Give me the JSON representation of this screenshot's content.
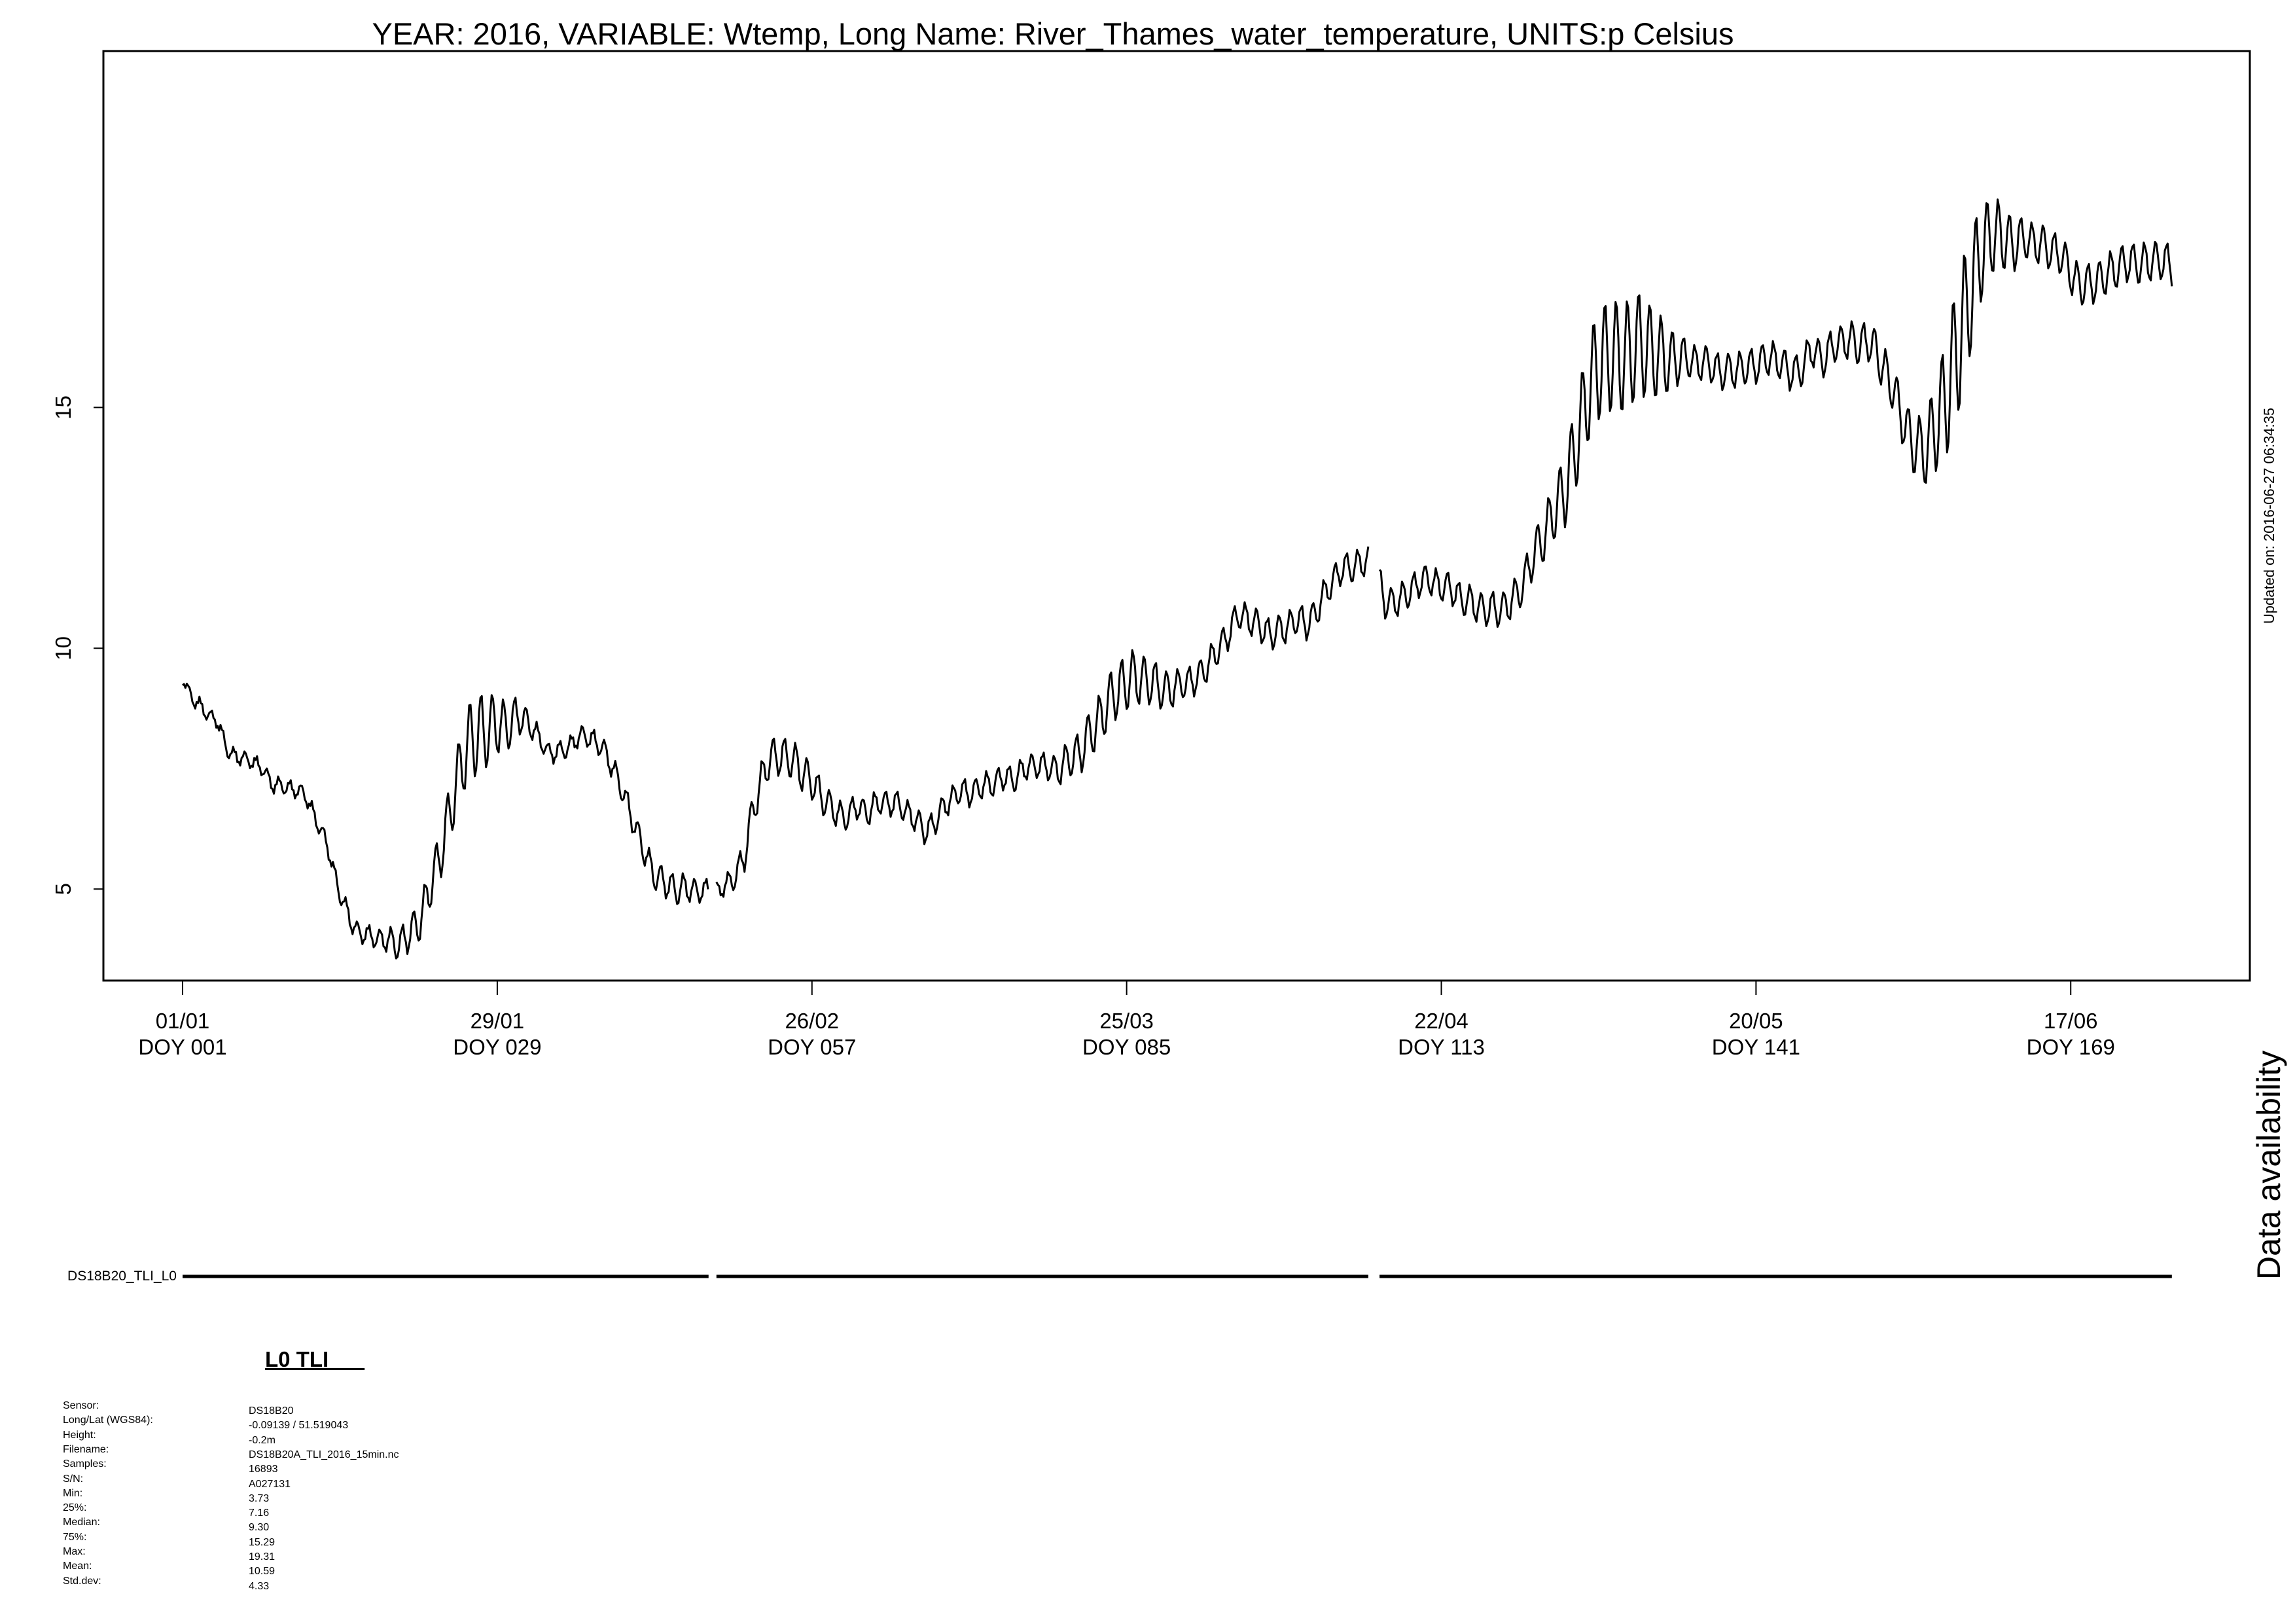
{
  "chart_data": {
    "type": "line",
    "title": "YEAR: 2016, VARIABLE: Wtemp, Long Name: River_Thames_water_temperature, UNITS:p Celsius",
    "xlabel": "",
    "ylabel": "",
    "xlim": [
      1,
      179
    ],
    "ylim": [
      3.1,
      22.4
    ],
    "yticks": [
      5,
      10,
      15
    ],
    "xticks": [
      {
        "doy": 1,
        "date": "01/01",
        "label": "DOY 001"
      },
      {
        "doy": 29,
        "date": "29/01",
        "label": "DOY 029"
      },
      {
        "doy": 57,
        "date": "26/02",
        "label": "DOY 057"
      },
      {
        "doy": 85,
        "date": "25/03",
        "label": "DOY 085"
      },
      {
        "doy": 113,
        "date": "22/04",
        "label": "DOY 113"
      },
      {
        "doy": 141,
        "date": "20/05",
        "label": "DOY 141"
      },
      {
        "doy": 169,
        "date": "17/06",
        "label": "DOY 169"
      }
    ],
    "grid": false,
    "diurnal_amplitude": [
      {
        "doy": 1,
        "amp": 0.12
      },
      {
        "doy": 10,
        "amp": 0.15
      },
      {
        "doy": 18,
        "amp": 0.18
      },
      {
        "doy": 24,
        "amp": 0.5
      },
      {
        "doy": 27,
        "amp": 0.9
      },
      {
        "doy": 29,
        "amp": 0.6
      },
      {
        "doy": 33,
        "amp": 0.15
      },
      {
        "doy": 40,
        "amp": 0.25
      },
      {
        "doy": 45,
        "amp": 0.3
      },
      {
        "doy": 49,
        "amp": 0.15
      },
      {
        "doy": 52,
        "amp": 0.4
      },
      {
        "doy": 56,
        "amp": 0.4
      },
      {
        "doy": 60,
        "amp": 0.25
      },
      {
        "doy": 70,
        "amp": 0.25
      },
      {
        "doy": 78,
        "amp": 0.25
      },
      {
        "doy": 82,
        "amp": 0.5
      },
      {
        "doy": 85,
        "amp": 0.6
      },
      {
        "doy": 90,
        "amp": 0.3
      },
      {
        "doy": 100,
        "amp": 0.3
      },
      {
        "doy": 107,
        "amp": 0.3
      },
      {
        "doy": 113,
        "amp": 0.3
      },
      {
        "doy": 120,
        "amp": 0.35
      },
      {
        "doy": 123,
        "amp": 0.6
      },
      {
        "doy": 127,
        "amp": 1.2
      },
      {
        "doy": 131,
        "amp": 1.1
      },
      {
        "doy": 135,
        "amp": 0.35
      },
      {
        "doy": 148,
        "amp": 0.35
      },
      {
        "doy": 154,
        "amp": 0.5
      },
      {
        "doy": 156,
        "amp": 0.7
      },
      {
        "doy": 159,
        "amp": 1.5
      },
      {
        "doy": 162,
        "amp": 0.8
      },
      {
        "doy": 165,
        "amp": 0.4
      },
      {
        "doy": 178,
        "amp": 0.4
      }
    ],
    "series": [
      {
        "segments": [
          [
            {
              "doy": 1.0,
              "value": 9.4
            },
            {
              "doy": 2,
              "value": 8.9
            },
            {
              "doy": 4,
              "value": 8.5
            },
            {
              "doy": 5,
              "value": 7.9
            },
            {
              "doy": 6,
              "value": 7.7
            },
            {
              "doy": 7,
              "value": 7.7
            },
            {
              "doy": 8,
              "value": 7.5
            },
            {
              "doy": 9,
              "value": 7.2
            },
            {
              "doy": 10,
              "value": 7.1
            },
            {
              "doy": 11,
              "value": 7.1
            },
            {
              "doy": 12,
              "value": 6.9
            },
            {
              "doy": 13,
              "value": 6.4
            },
            {
              "doy": 14,
              "value": 5.8
            },
            {
              "doy": 15,
              "value": 4.9
            },
            {
              "doy": 16,
              "value": 4.3
            },
            {
              "doy": 17,
              "value": 4.05
            },
            {
              "doy": 18,
              "value": 4.0
            },
            {
              "doy": 19,
              "value": 3.95
            },
            {
              "doy": 20,
              "value": 3.85
            },
            {
              "doy": 21,
              "value": 4.0
            },
            {
              "doy": 22,
              "value": 4.3
            },
            {
              "doy": 23,
              "value": 5.0
            },
            {
              "doy": 24,
              "value": 5.8
            },
            {
              "doy": 25,
              "value": 6.8
            },
            {
              "doy": 26,
              "value": 7.8
            },
            {
              "doy": 27,
              "value": 8.2
            },
            {
              "doy": 28,
              "value": 8.3
            },
            {
              "doy": 29,
              "value": 8.4
            },
            {
              "doy": 30,
              "value": 8.4
            },
            {
              "doy": 31,
              "value": 8.6
            },
            {
              "doy": 32,
              "value": 8.4
            },
            {
              "doy": 33,
              "value": 8.0
            },
            {
              "doy": 34,
              "value": 7.8
            },
            {
              "doy": 35,
              "value": 7.9
            },
            {
              "doy": 36,
              "value": 8.1
            },
            {
              "doy": 37,
              "value": 8.2
            },
            {
              "doy": 38,
              "value": 8.0
            },
            {
              "doy": 39,
              "value": 7.7
            },
            {
              "doy": 40,
              "value": 7.1
            },
            {
              "doy": 41,
              "value": 6.5
            },
            {
              "doy": 42,
              "value": 5.8
            },
            {
              "doy": 43,
              "value": 5.3
            },
            {
              "doy": 44,
              "value": 5.1
            },
            {
              "doy": 45,
              "value": 5.0
            },
            {
              "doy": 46,
              "value": 5.0
            },
            {
              "doy": 47.8,
              "value": 4.95
            }
          ],
          [
            {
              "doy": 48.5,
              "value": 5.0
            },
            {
              "doy": 49,
              "value": 5.0
            },
            {
              "doy": 50,
              "value": 5.2
            },
            {
              "doy": 51,
              "value": 5.7
            },
            {
              "doy": 52,
              "value": 6.9
            },
            {
              "doy": 53,
              "value": 7.6
            },
            {
              "doy": 54,
              "value": 7.8
            },
            {
              "doy": 55,
              "value": 7.7
            },
            {
              "doy": 56,
              "value": 7.5
            },
            {
              "doy": 57,
              "value": 7.2
            },
            {
              "doy": 58,
              "value": 6.9
            },
            {
              "doy": 59,
              "value": 6.6
            },
            {
              "doy": 60,
              "value": 6.5
            },
            {
              "doy": 61,
              "value": 6.7
            },
            {
              "doy": 62,
              "value": 6.6
            },
            {
              "doy": 63,
              "value": 6.8
            },
            {
              "doy": 64,
              "value": 6.8
            },
            {
              "doy": 65,
              "value": 6.7
            },
            {
              "doy": 66,
              "value": 6.5
            },
            {
              "doy": 67,
              "value": 6.2
            },
            {
              "doy": 68,
              "value": 6.4
            },
            {
              "doy": 69,
              "value": 6.8
            },
            {
              "doy": 70,
              "value": 7.0
            },
            {
              "doy": 71,
              "value": 7.0
            },
            {
              "doy": 72,
              "value": 7.1
            },
            {
              "doy": 73,
              "value": 7.2
            },
            {
              "doy": 74,
              "value": 7.3
            },
            {
              "doy": 75,
              "value": 7.3
            },
            {
              "doy": 76,
              "value": 7.5
            },
            {
              "doy": 77,
              "value": 7.6
            },
            {
              "doy": 78,
              "value": 7.5
            },
            {
              "doy": 79,
              "value": 7.5
            },
            {
              "doy": 80,
              "value": 7.7
            },
            {
              "doy": 81,
              "value": 7.9
            },
            {
              "doy": 82,
              "value": 8.3
            },
            {
              "doy": 83,
              "value": 8.7
            },
            {
              "doy": 84,
              "value": 9.1
            },
            {
              "doy": 85,
              "value": 9.3
            },
            {
              "doy": 86,
              "value": 9.4
            },
            {
              "doy": 87,
              "value": 9.3
            },
            {
              "doy": 88,
              "value": 9.2
            },
            {
              "doy": 89,
              "value": 9.1
            },
            {
              "doy": 90,
              "value": 9.3
            },
            {
              "doy": 91,
              "value": 9.3
            },
            {
              "doy": 92,
              "value": 9.6
            },
            {
              "doy": 93,
              "value": 9.9
            },
            {
              "doy": 94,
              "value": 10.3
            },
            {
              "doy": 95,
              "value": 10.7
            },
            {
              "doy": 96,
              "value": 10.6
            },
            {
              "doy": 97,
              "value": 10.4
            },
            {
              "doy": 98,
              "value": 10.3
            },
            {
              "doy": 99,
              "value": 10.4
            },
            {
              "doy": 100,
              "value": 10.6
            },
            {
              "doy": 101,
              "value": 10.5
            },
            {
              "doy": 102,
              "value": 10.8
            },
            {
              "doy": 103,
              "value": 11.3
            },
            {
              "doy": 104,
              "value": 11.6
            },
            {
              "doy": 105,
              "value": 11.7
            },
            {
              "doy": 106.5,
              "value": 11.8
            }
          ],
          [
            {
              "doy": 107.5,
              "value": 11.4
            },
            {
              "doy": 108,
              "value": 10.9
            },
            {
              "doy": 109,
              "value": 11.0
            },
            {
              "doy": 110,
              "value": 11.1
            },
            {
              "doy": 111,
              "value": 11.4
            },
            {
              "doy": 112,
              "value": 11.4
            },
            {
              "doy": 113,
              "value": 11.3
            },
            {
              "doy": 114,
              "value": 11.2
            },
            {
              "doy": 115,
              "value": 11.0
            },
            {
              "doy": 116,
              "value": 10.9
            },
            {
              "doy": 117,
              "value": 10.8
            },
            {
              "doy": 118,
              "value": 10.8
            },
            {
              "doy": 119,
              "value": 10.9
            },
            {
              "doy": 120,
              "value": 11.2
            },
            {
              "doy": 121,
              "value": 11.8
            },
            {
              "doy": 122,
              "value": 12.3
            },
            {
              "doy": 123,
              "value": 12.8
            },
            {
              "doy": 124,
              "value": 13.3
            },
            {
              "doy": 125,
              "value": 14.2
            },
            {
              "doy": 126,
              "value": 15.3
            },
            {
              "doy": 127,
              "value": 15.9
            },
            {
              "doy": 128,
              "value": 16.1
            },
            {
              "doy": 129,
              "value": 16.0
            },
            {
              "doy": 130,
              "value": 16.2
            },
            {
              "doy": 131,
              "value": 16.3
            },
            {
              "doy": 132,
              "value": 16.1
            },
            {
              "doy": 133,
              "value": 16.0
            },
            {
              "doy": 134,
              "value": 16.0
            },
            {
              "doy": 135,
              "value": 16.0
            },
            {
              "doy": 136,
              "value": 15.9
            },
            {
              "doy": 137,
              "value": 15.9
            },
            {
              "doy": 138,
              "value": 15.7
            },
            {
              "doy": 139,
              "value": 15.8
            },
            {
              "doy": 140,
              "value": 15.8
            },
            {
              "doy": 141,
              "value": 15.9
            },
            {
              "doy": 142,
              "value": 16.0
            },
            {
              "doy": 143,
              "value": 16.0
            },
            {
              "doy": 144,
              "value": 15.7
            },
            {
              "doy": 145,
              "value": 15.8
            },
            {
              "doy": 146,
              "value": 16.2
            },
            {
              "doy": 147,
              "value": 16.0
            },
            {
              "doy": 148,
              "value": 16.3
            },
            {
              "doy": 149,
              "value": 16.4
            },
            {
              "doy": 150,
              "value": 16.3
            },
            {
              "doy": 151,
              "value": 16.4
            },
            {
              "doy": 152,
              "value": 16.0
            },
            {
              "doy": 153,
              "value": 15.5
            },
            {
              "doy": 154,
              "value": 14.8
            },
            {
              "doy": 155,
              "value": 14.2
            },
            {
              "doy": 156,
              "value": 14.1
            },
            {
              "doy": 157,
              "value": 14.6
            },
            {
              "doy": 158,
              "value": 15.3
            },
            {
              "doy": 159,
              "value": 16.3
            },
            {
              "doy": 160,
              "value": 17.3
            },
            {
              "doy": 161,
              "value": 18.2
            },
            {
              "doy": 162,
              "value": 18.6
            },
            {
              "doy": 163,
              "value": 18.5
            },
            {
              "doy": 164,
              "value": 18.4
            },
            {
              "doy": 165,
              "value": 18.5
            },
            {
              "doy": 166,
              "value": 18.4
            },
            {
              "doy": 167,
              "value": 18.3
            },
            {
              "doy": 168,
              "value": 18.2
            },
            {
              "doy": 169,
              "value": 17.8
            },
            {
              "doy": 170,
              "value": 17.5
            },
            {
              "doy": 171,
              "value": 17.6
            },
            {
              "doy": 172,
              "value": 17.7
            },
            {
              "doy": 173,
              "value": 17.9
            },
            {
              "doy": 174,
              "value": 18.0
            },
            {
              "doy": 175,
              "value": 18.0
            },
            {
              "doy": 176,
              "value": 18.0
            },
            {
              "doy": 177,
              "value": 18.1
            },
            {
              "doy": 178,
              "value": 17.9
            }
          ]
        ]
      }
    ],
    "availability": {
      "title": "Data availability",
      "label": "DS18B20_TLI_L0",
      "segments": [
        [
          1,
          47.8
        ],
        [
          48.5,
          106.5
        ],
        [
          107.5,
          178
        ]
      ]
    },
    "updated": "Updated on: 2016-06-27 06:34:35"
  },
  "info": {
    "heading": "L0 TLI      ",
    "rows": [
      {
        "key": "Sensor:",
        "value": "DS18B20"
      },
      {
        "key": "Long/Lat (WGS84):",
        "value": "-0.09139 / 51.519043"
      },
      {
        "key": "Height:",
        "value": "-0.2m"
      },
      {
        "key": "Filename:",
        "value": "DS18B20A_TLI_2016_15min.nc"
      },
      {
        "key": "Samples:",
        "value": "16893"
      },
      {
        "key": "S/N:",
        "value": "A027131"
      },
      {
        "key": "Min:",
        "value": "3.73"
      },
      {
        "key": "25%:",
        "value": "7.16"
      },
      {
        "key": "Median:",
        "value": "9.30"
      },
      {
        "key": "75%:",
        "value": "15.29"
      },
      {
        "key": "Max:",
        "value": "19.31"
      },
      {
        "key": "Mean:",
        "value": "10.59"
      },
      {
        "key": "Std.dev:",
        "value": "4.33"
      }
    ]
  }
}
